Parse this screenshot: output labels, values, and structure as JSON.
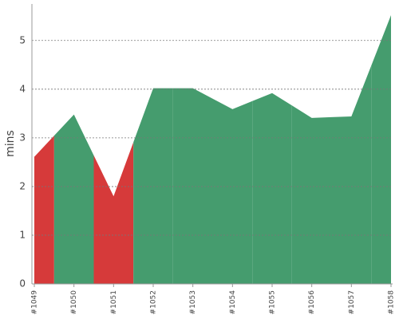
{
  "chart_data": {
    "type": "area",
    "y_label": "mins",
    "categories": [
      "#1049",
      "#1050",
      "#1051",
      "#1052",
      "#1053",
      "#1054",
      "#1055",
      "#1056",
      "#1057",
      "#1058"
    ],
    "values": [
      2.61,
      3.48,
      1.8,
      4.02,
      4.02,
      3.59,
      3.92,
      3.41,
      3.44,
      5.52
    ],
    "colors": [
      "#d63a3a",
      "#459c6e",
      "#d63a3a",
      "#459c6e",
      "#459c6e",
      "#459c6e",
      "#459c6e",
      "#459c6e",
      "#459c6e",
      "#459c6e"
    ],
    "ylim": [
      0,
      5.75
    ],
    "yticks": [
      0,
      1,
      2,
      3,
      4,
      5
    ],
    "grid": true
  }
}
